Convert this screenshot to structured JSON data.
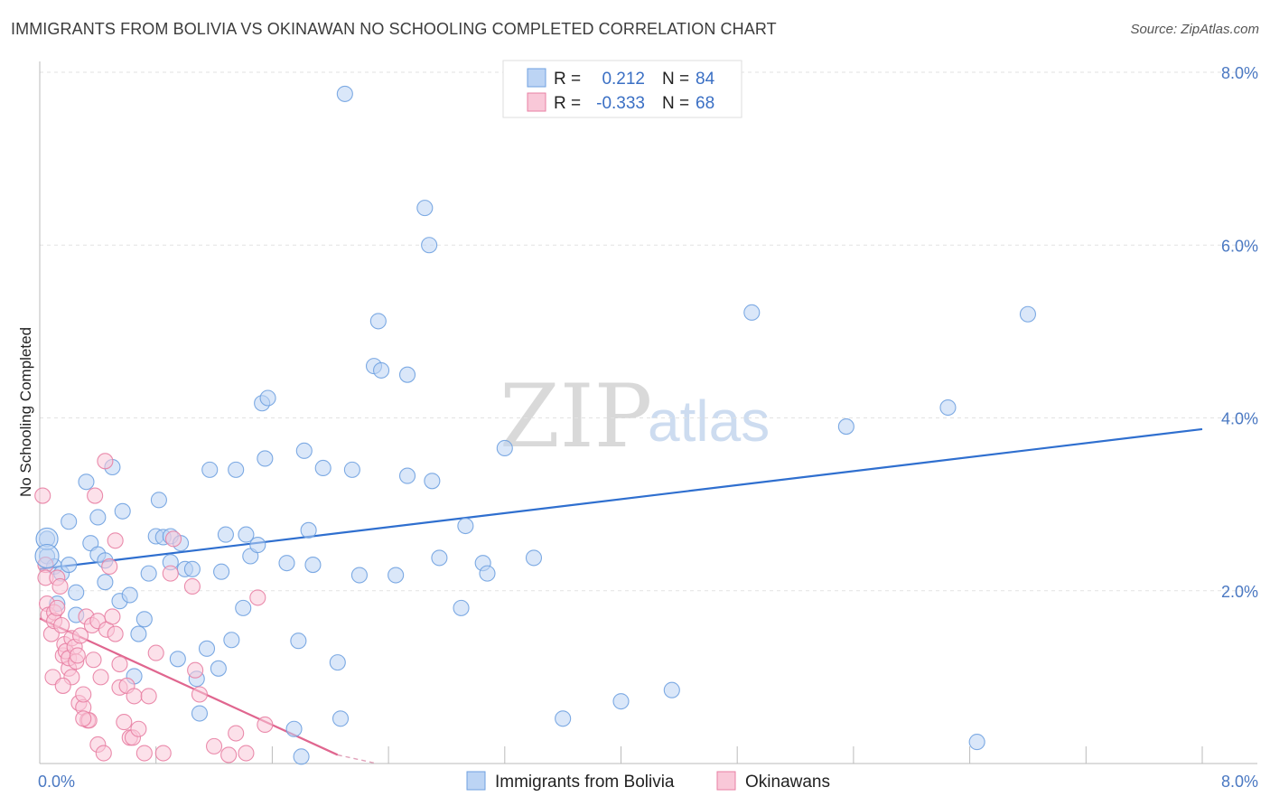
{
  "header": {
    "title": "IMMIGRANTS FROM BOLIVIA VS OKINAWAN NO SCHOOLING COMPLETED CORRELATION CHART",
    "source": "Source: ZipAtlas.com"
  },
  "watermark": {
    "zip": "ZIP",
    "atlas": "atlas"
  },
  "legend": {
    "r_label": "R =",
    "n_label": "N =",
    "rows": [
      {
        "r": "0.212",
        "n": "84",
        "color": "#6fa1e0",
        "fill": "#bcd4f4"
      },
      {
        "r": "-0.333",
        "n": "68",
        "color": "#e87fa3",
        "fill": "#f9c8d8"
      }
    ]
  },
  "chart_data": {
    "type": "scatter",
    "title": "IMMIGRANTS FROM BOLIVIA VS OKINAWAN NO SCHOOLING COMPLETED CORRELATION CHART",
    "xlabel": "",
    "ylabel": "No Schooling Completed",
    "xlim": [
      0,
      8
    ],
    "ylim": [
      0,
      8
    ],
    "x_tick_labels": [
      "0.0%",
      "8.0%"
    ],
    "y_tick_labels": [
      "2.0%",
      "4.0%",
      "6.0%",
      "8.0%"
    ],
    "y_ticks": [
      2,
      4,
      6,
      8
    ],
    "grid": true,
    "legend_position": "top-center",
    "series": [
      {
        "name": "Immigrants from Bolivia",
        "color": "#6fa1e0",
        "fill": "#bcd4f4",
        "trend": {
          "x": [
            0.0,
            8.0
          ],
          "y": [
            2.25,
            3.87
          ]
        },
        "points": [
          [
            0.05,
            2.6
          ],
          [
            0.05,
            2.4
          ],
          [
            0.1,
            2.28
          ],
          [
            0.12,
            1.85
          ],
          [
            0.15,
            2.2
          ],
          [
            0.2,
            2.8
          ],
          [
            0.2,
            2.3
          ],
          [
            0.25,
            1.98
          ],
          [
            0.25,
            1.72
          ],
          [
            0.32,
            3.26
          ],
          [
            0.35,
            2.55
          ],
          [
            0.4,
            2.42
          ],
          [
            0.4,
            2.85
          ],
          [
            0.45,
            2.1
          ],
          [
            0.45,
            2.35
          ],
          [
            0.5,
            3.43
          ],
          [
            0.55,
            1.88
          ],
          [
            0.57,
            2.92
          ],
          [
            0.62,
            1.95
          ],
          [
            0.65,
            1.01
          ],
          [
            0.68,
            1.5
          ],
          [
            0.72,
            1.67
          ],
          [
            0.75,
            2.2
          ],
          [
            0.8,
            2.63
          ],
          [
            0.82,
            3.05
          ],
          [
            0.85,
            2.62
          ],
          [
            0.9,
            2.63
          ],
          [
            0.9,
            2.33
          ],
          [
            0.95,
            1.21
          ],
          [
            0.97,
            2.55
          ],
          [
            1.0,
            2.25
          ],
          [
            1.05,
            2.25
          ],
          [
            1.08,
            0.98
          ],
          [
            1.1,
            0.58
          ],
          [
            1.15,
            1.33
          ],
          [
            1.17,
            3.4
          ],
          [
            1.23,
            1.1
          ],
          [
            1.25,
            2.22
          ],
          [
            1.28,
            2.65
          ],
          [
            1.32,
            1.43
          ],
          [
            1.35,
            3.4
          ],
          [
            1.4,
            1.8
          ],
          [
            1.42,
            2.65
          ],
          [
            1.45,
            2.4
          ],
          [
            1.5,
            2.53
          ],
          [
            1.53,
            4.17
          ],
          [
            1.55,
            3.53
          ],
          [
            1.57,
            4.23
          ],
          [
            1.7,
            2.32
          ],
          [
            1.75,
            0.4
          ],
          [
            1.78,
            1.42
          ],
          [
            1.8,
            0.08
          ],
          [
            1.82,
            3.62
          ],
          [
            1.85,
            2.7
          ],
          [
            1.88,
            2.3
          ],
          [
            1.95,
            3.42
          ],
          [
            2.05,
            1.17
          ],
          [
            2.07,
            0.52
          ],
          [
            2.15,
            3.4
          ],
          [
            2.2,
            2.18
          ],
          [
            2.3,
            4.6
          ],
          [
            2.33,
            5.12
          ],
          [
            2.35,
            4.55
          ],
          [
            2.45,
            2.18
          ],
          [
            2.53,
            4.5
          ],
          [
            2.53,
            3.33
          ],
          [
            2.65,
            6.43
          ],
          [
            2.68,
            6.0
          ],
          [
            2.7,
            3.27
          ],
          [
            2.75,
            2.38
          ],
          [
            2.9,
            1.8
          ],
          [
            2.93,
            2.75
          ],
          [
            3.05,
            2.32
          ],
          [
            3.08,
            2.2
          ],
          [
            3.2,
            3.65
          ],
          [
            3.4,
            2.38
          ],
          [
            3.6,
            0.52
          ],
          [
            4.0,
            0.72
          ],
          [
            4.35,
            0.85
          ],
          [
            4.9,
            5.22
          ],
          [
            5.55,
            3.9
          ],
          [
            6.25,
            4.12
          ],
          [
            6.45,
            0.25
          ],
          [
            6.8,
            5.2
          ],
          [
            2.1,
            7.75
          ]
        ]
      },
      {
        "name": "Okinawans",
        "color": "#e87fa3",
        "fill": "#f9c8d8",
        "trend": {
          "x": [
            0.0,
            2.05
          ],
          "y": [
            1.68,
            0.1
          ]
        },
        "points": [
          [
            0.02,
            3.1
          ],
          [
            0.04,
            2.3
          ],
          [
            0.04,
            2.15
          ],
          [
            0.05,
            1.85
          ],
          [
            0.06,
            1.72
          ],
          [
            0.08,
            1.5
          ],
          [
            0.09,
            1.0
          ],
          [
            0.1,
            1.75
          ],
          [
            0.1,
            1.65
          ],
          [
            0.12,
            2.15
          ],
          [
            0.12,
            1.8
          ],
          [
            0.14,
            2.05
          ],
          [
            0.15,
            1.6
          ],
          [
            0.16,
            1.25
          ],
          [
            0.17,
            1.38
          ],
          [
            0.18,
            1.3
          ],
          [
            0.2,
            1.1
          ],
          [
            0.2,
            1.22
          ],
          [
            0.22,
            1.45
          ],
          [
            0.22,
            1.0
          ],
          [
            0.24,
            1.35
          ],
          [
            0.25,
            1.18
          ],
          [
            0.26,
            1.25
          ],
          [
            0.27,
            0.7
          ],
          [
            0.28,
            1.48
          ],
          [
            0.3,
            0.65
          ],
          [
            0.3,
            0.8
          ],
          [
            0.32,
            1.7
          ],
          [
            0.33,
            0.5
          ],
          [
            0.34,
            0.5
          ],
          [
            0.36,
            1.6
          ],
          [
            0.37,
            1.2
          ],
          [
            0.38,
            3.1
          ],
          [
            0.4,
            1.65
          ],
          [
            0.4,
            0.22
          ],
          [
            0.42,
            1.0
          ],
          [
            0.44,
            0.12
          ],
          [
            0.45,
            3.5
          ],
          [
            0.46,
            1.55
          ],
          [
            0.48,
            2.28
          ],
          [
            0.5,
            1.7
          ],
          [
            0.52,
            2.58
          ],
          [
            0.52,
            1.5
          ],
          [
            0.55,
            1.15
          ],
          [
            0.55,
            0.88
          ],
          [
            0.58,
            0.48
          ],
          [
            0.6,
            0.9
          ],
          [
            0.62,
            0.3
          ],
          [
            0.64,
            0.3
          ],
          [
            0.65,
            0.78
          ],
          [
            0.68,
            0.4
          ],
          [
            0.72,
            0.12
          ],
          [
            0.75,
            0.78
          ],
          [
            0.8,
            1.28
          ],
          [
            0.85,
            0.12
          ],
          [
            0.9,
            2.2
          ],
          [
            0.92,
            2.6
          ],
          [
            1.05,
            2.05
          ],
          [
            1.07,
            1.08
          ],
          [
            1.1,
            0.8
          ],
          [
            1.2,
            0.2
          ],
          [
            1.3,
            0.1
          ],
          [
            1.35,
            0.35
          ],
          [
            1.42,
            0.12
          ],
          [
            1.5,
            1.92
          ],
          [
            1.55,
            0.45
          ],
          [
            0.16,
            0.9
          ],
          [
            0.3,
            0.52
          ]
        ]
      }
    ]
  },
  "bottom_legend": [
    {
      "label": "Immigrants from Bolivia",
      "color": "#6fa1e0",
      "fill": "#bcd4f4"
    },
    {
      "label": "Okinawans",
      "color": "#e87fa3",
      "fill": "#f9c8d8"
    }
  ]
}
